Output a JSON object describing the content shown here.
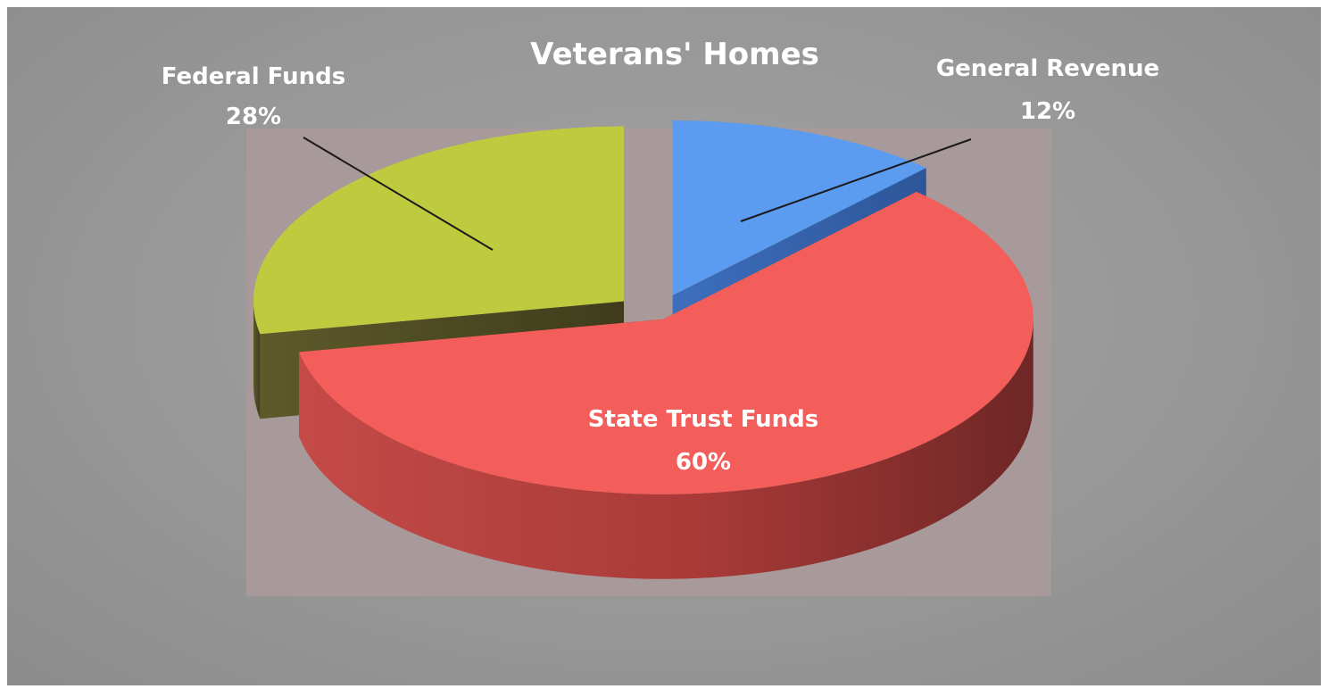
{
  "chart_data": {
    "type": "pie",
    "title": "Veterans' Homes",
    "categories": [
      "General Revenue",
      "State Trust Funds",
      "Federal Funds"
    ],
    "values": [
      12,
      60,
      28
    ],
    "labels": [
      {
        "name": "General Revenue",
        "percent_text": "12%"
      },
      {
        "name": "State Trust Funds",
        "percent_text": "60%"
      },
      {
        "name": "Federal Funds",
        "percent_text": "28%"
      }
    ],
    "colors": [
      "#5b9bf0",
      "#f35d5a",
      "#bfcb3e"
    ],
    "style": "3d-exploded"
  }
}
